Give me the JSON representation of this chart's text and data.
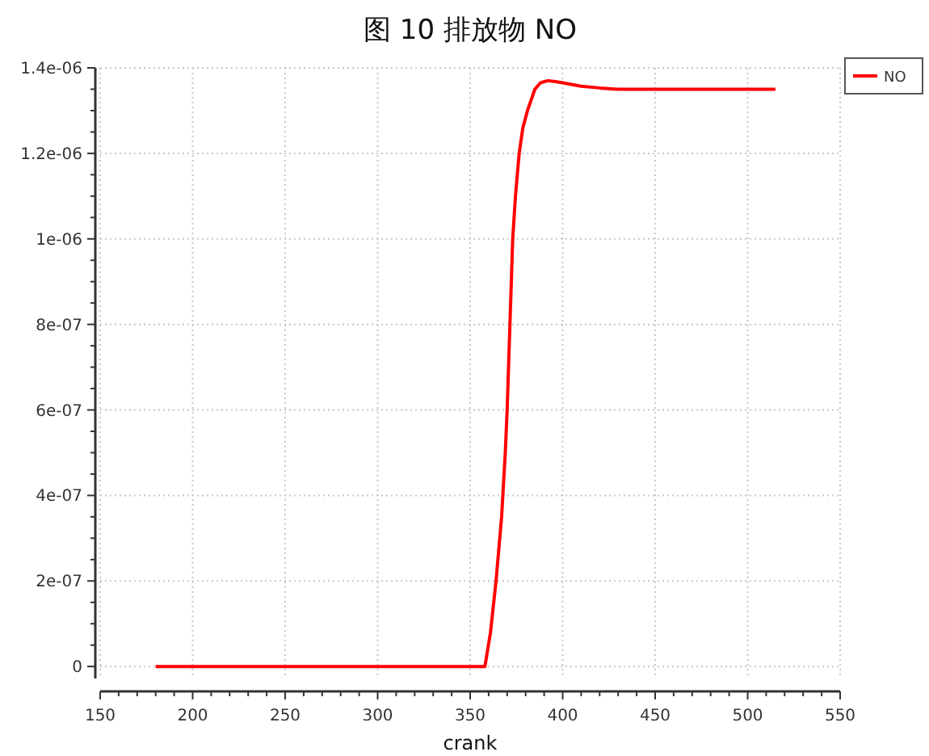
{
  "chart_data": {
    "type": "line",
    "title": "图 10 排放物 NO",
    "xlabel": "crank",
    "series": [
      {
        "name": "NO",
        "color": "#ff0000",
        "x": [
          180,
          250,
          300,
          350,
          358,
          361,
          364,
          367,
          369,
          370,
          371.5,
          373,
          374.5,
          376.5,
          378.5,
          381,
          385,
          388,
          392,
          396,
          400,
          410,
          420,
          430,
          470,
          515
        ],
        "values": [
          0,
          0,
          0,
          0,
          0,
          8e-08,
          2e-07,
          3.5e-07,
          5e-07,
          6e-07,
          8e-07,
          1e-06,
          1.1e-06,
          1.2e-06,
          1.26e-06,
          1.3e-06,
          1.35e-06,
          1.365e-06,
          1.37e-06,
          1.368e-06,
          1.365e-06,
          1.357e-06,
          1.353e-06,
          1.35e-06,
          1.35e-06,
          1.35e-06
        ]
      }
    ],
    "xlim": [
      150,
      550
    ],
    "xticks": [
      150,
      200,
      250,
      300,
      350,
      400,
      450,
      500,
      550
    ],
    "ylim": [
      -2.8e-08,
      1.4e-06
    ],
    "yticks": [
      0,
      {
        "value": 2e-07,
        "label": "2e-07"
      },
      {
        "value": 4e-07,
        "label": "4e-07"
      },
      {
        "value": 6e-07,
        "label": "6e-07"
      },
      {
        "value": 8e-07,
        "label": "8e-07"
      },
      {
        "value": 1e-06,
        "label": "1e-06"
      },
      {
        "value": 1.2e-06,
        "label": "1.2e-06"
      },
      {
        "value": 1.4e-06,
        "label": "1.4e-06"
      }
    ],
    "grid": true,
    "legend": "top right",
    "marker": "none",
    "line_style": "solid"
  }
}
